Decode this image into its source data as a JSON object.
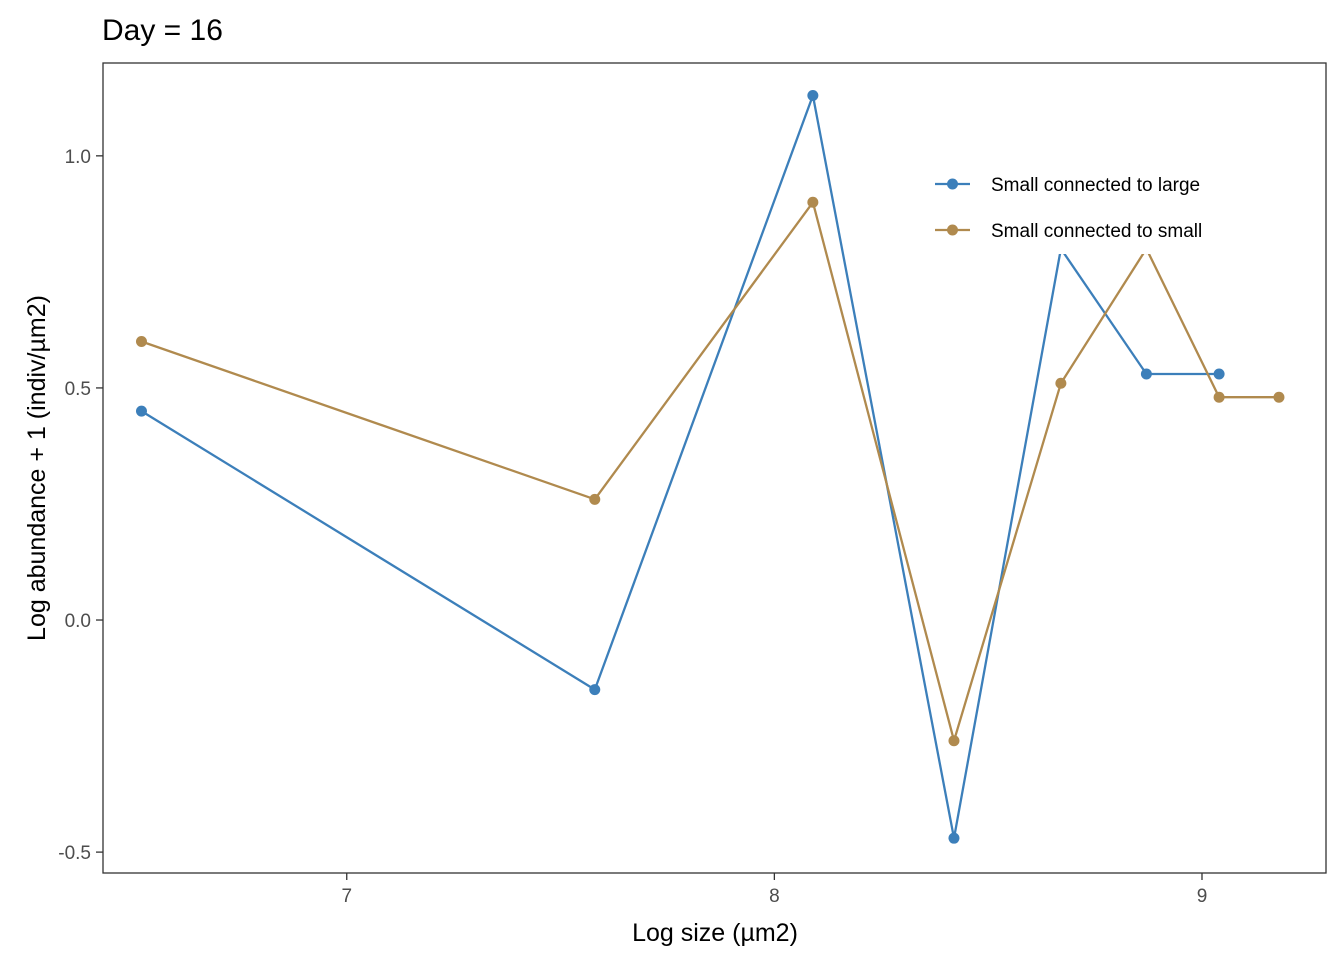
{
  "chart_data": {
    "type": "line",
    "title": "Day = 16",
    "xlabel": "Log size (µm2)",
    "ylabel": "Log abundance + 1 (indiv/µm2)",
    "xlim": [
      6.43,
      9.29
    ],
    "ylim": [
      -0.545,
      1.2
    ],
    "x_ticks": [
      7,
      8,
      9
    ],
    "y_ticks": [
      -0.5,
      0.0,
      0.5,
      1.0
    ],
    "x_tick_labels": [
      "7",
      "8",
      "9"
    ],
    "y_tick_labels": [
      "-0.5",
      "0.0",
      "0.5",
      "1.0"
    ],
    "grid": false,
    "legend_position": "top-right",
    "series": [
      {
        "name": "Small connected to large",
        "color": "#3C7FBA",
        "x": [
          6.52,
          7.58,
          8.09,
          8.42,
          8.67,
          8.87,
          9.04
        ],
        "y": [
          0.45,
          -0.15,
          1.13,
          -0.47,
          0.8,
          0.53,
          0.53
        ]
      },
      {
        "name": "Small connected to small",
        "color": "#B08A4E",
        "x": [
          6.52,
          7.58,
          8.09,
          8.42,
          8.67,
          8.87,
          9.04,
          9.18
        ],
        "y": [
          0.6,
          0.26,
          0.9,
          -0.26,
          0.51,
          0.8,
          0.48,
          0.48
        ]
      }
    ]
  }
}
